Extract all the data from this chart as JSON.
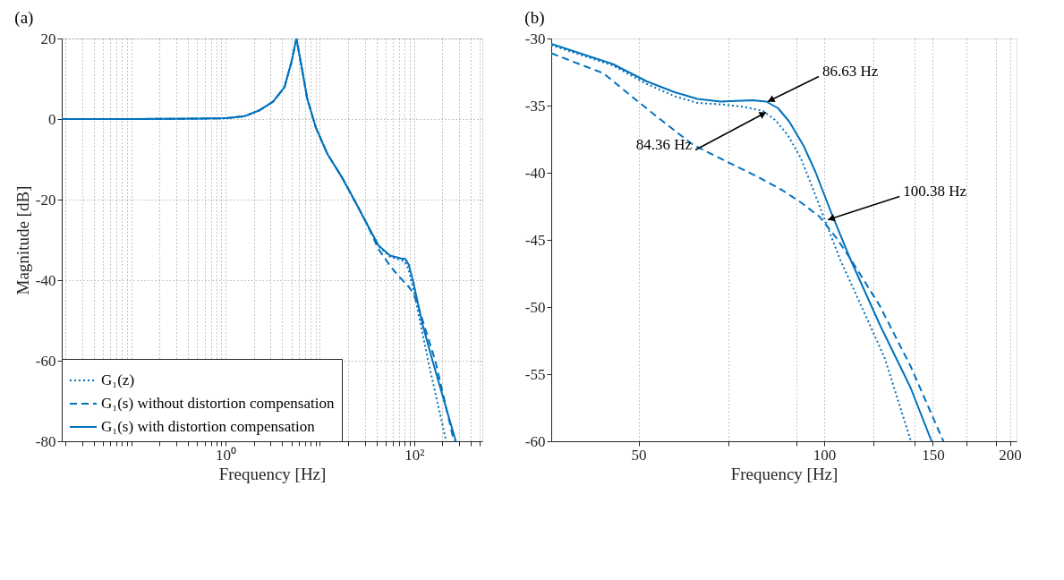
{
  "chart_data": [
    {
      "type": "line",
      "title": "(a)",
      "xlabel": "Frequency [Hz]",
      "ylabel": "Magnitude [dB]",
      "log": "x",
      "xlim": [
        0.0183,
        530
      ],
      "ylim": [
        -80,
        20
      ],
      "xticks": [
        {
          "value": 0.02,
          "label": null
        },
        {
          "value": 0.03,
          "label": null
        },
        {
          "value": 0.04,
          "label": null
        },
        {
          "value": 0.05,
          "label": null
        },
        {
          "value": 0.06,
          "label": null
        },
        {
          "value": 0.07,
          "label": null
        },
        {
          "value": 0.08,
          "label": null
        },
        {
          "value": 0.09,
          "label": null
        },
        {
          "value": 0.1,
          "label": null
        },
        {
          "value": 0.2,
          "label": null
        },
        {
          "value": 0.3,
          "label": null
        },
        {
          "value": 0.4,
          "label": null
        },
        {
          "value": 0.5,
          "label": null
        },
        {
          "value": 0.6,
          "label": null
        },
        {
          "value": 0.7,
          "label": null
        },
        {
          "value": 0.8,
          "label": null
        },
        {
          "value": 0.9,
          "label": null
        },
        {
          "value": 1,
          "label": "10⁰"
        },
        {
          "value": 2,
          "label": null
        },
        {
          "value": 3,
          "label": null
        },
        {
          "value": 4,
          "label": null
        },
        {
          "value": 5,
          "label": null
        },
        {
          "value": 6,
          "label": null
        },
        {
          "value": 7,
          "label": null
        },
        {
          "value": 8,
          "label": null
        },
        {
          "value": 9,
          "label": null
        },
        {
          "value": 10,
          "label": null
        },
        {
          "value": 20,
          "label": null
        },
        {
          "value": 30,
          "label": null
        },
        {
          "value": 40,
          "label": null
        },
        {
          "value": 50,
          "label": null
        },
        {
          "value": 60,
          "label": null
        },
        {
          "value": 70,
          "label": null
        },
        {
          "value": 80,
          "label": null
        },
        {
          "value": 90,
          "label": null
        },
        {
          "value": 100,
          "label": "10²"
        },
        {
          "value": 200,
          "label": null
        },
        {
          "value": 300,
          "label": null
        },
        {
          "value": 400,
          "label": null
        },
        {
          "value": 500,
          "label": null
        }
      ],
      "yticks": [
        -80,
        -60,
        -40,
        -20,
        0,
        20
      ],
      "grid": true,
      "legend": "bottom left",
      "series": [
        {
          "name": "G₁(z)",
          "color": "#0072bd",
          "line_style": "dotted",
          "x": [
            0.0183,
            0.1,
            0.5,
            1,
            1.59,
            2.26,
            3.19,
            4.22,
            5.02,
            5.65,
            6.42,
            7.37,
            9.08,
            12.0,
            17.0,
            24.0,
            31.7,
            42,
            55.5,
            73,
            80,
            87,
            96,
            116,
            141,
            219
          ],
          "values": [
            0,
            0,
            0.1,
            0.2,
            0.7,
            2.1,
            4.3,
            7.9,
            14.3,
            20,
            12.9,
            5,
            -2.1,
            -8.6,
            -14.3,
            -20.7,
            -26.1,
            -31.5,
            -34.2,
            -35,
            -35.4,
            -37.2,
            -41.1,
            -50.4,
            -60,
            -80
          ]
        },
        {
          "name": "G₁(s) without distortion compensation",
          "color": "#0072bd",
          "line_style": "dashed",
          "x": [
            0.0183,
            0.1,
            0.5,
            1,
            1.59,
            2.26,
            3.19,
            4.22,
            5.02,
            5.65,
            6.42,
            7.37,
            9.08,
            12.0,
            17.0,
            24.0,
            31.7,
            42,
            55,
            69,
            85.5,
            98.4,
            110,
            168,
            265
          ],
          "values": [
            0,
            0,
            0.1,
            0.2,
            0.7,
            2.1,
            4.3,
            7.9,
            14.3,
            20,
            12.9,
            5,
            -2.1,
            -8.6,
            -14.3,
            -20.7,
            -26.1,
            -32.3,
            -36.3,
            -39.1,
            -41.3,
            -43.3,
            -46.3,
            -60,
            -80
          ]
        },
        {
          "name": "G₁(s) with distortion compensation",
          "color": "#0072bd",
          "line_style": "solid",
          "x": [
            0.0183,
            0.1,
            0.5,
            1,
            1.59,
            2.26,
            3.19,
            4.22,
            5.02,
            5.65,
            6.42,
            7.37,
            9.08,
            12.0,
            17.0,
            24.0,
            31.7,
            42,
            55.5,
            73,
            81,
            88,
            97,
            123,
            157,
            277
          ],
          "values": [
            0,
            0,
            0.1,
            0.2,
            0.7,
            2.1,
            4.3,
            7.9,
            14.3,
            20,
            12.9,
            5,
            -2.1,
            -8.6,
            -14.3,
            -20.7,
            -26.1,
            -31.4,
            -33.9,
            -34.6,
            -34.7,
            -36.2,
            -40,
            -51,
            -60,
            -80
          ]
        }
      ]
    },
    {
      "type": "line",
      "title": "(b)",
      "xlabel": "Frequency [Hz]",
      "log": "x",
      "xlim": [
        36.1,
        205
      ],
      "ylim": [
        -60,
        -30
      ],
      "xticks": [
        50,
        {
          "value": 70,
          "label": null
        },
        {
          "value": 90,
          "label": null
        },
        100,
        {
          "value": 120,
          "label": null
        },
        {
          "value": 140,
          "label": null
        },
        150,
        {
          "value": 170,
          "label": null
        },
        {
          "value": 190,
          "label": null
        },
        200
      ],
      "yticks": [
        -60,
        -55,
        -50,
        -45,
        -40,
        -35,
        -30
      ],
      "grid": "x",
      "annotations": [
        {
          "text": "86.63 Hz",
          "x": 81,
          "y": -34.7
        },
        {
          "text": "84.36 Hz",
          "x": 80.5,
          "y": -35.5
        },
        {
          "text": "100.38 Hz",
          "x": 101.4,
          "y": -43.5
        }
      ],
      "series": [
        {
          "color": "#0072bd",
          "line_style": "dotted",
          "x": [
            36.1,
            45.4,
            51.6,
            57.2,
            62.3,
            67.9,
            74.2,
            79.6,
            83.4,
            87.3,
            91.6,
            95.7,
            100.4,
            106.2,
            116.1,
            125.3,
            138
          ],
          "values": [
            -30.5,
            -32.0,
            -33.4,
            -34.3,
            -34.8,
            -34.9,
            -35.1,
            -35.4,
            -36.1,
            -37.2,
            -38.9,
            -41.1,
            -43.6,
            -46.5,
            -50.4,
            -53.8,
            -59.9
          ]
        },
        {
          "color": "#0072bd",
          "line_style": "dashed",
          "x": [
            36.1,
            43.9,
            49.3,
            55.2,
            61.2,
            69.0,
            78.0,
            85.5,
            91.6,
            98.4,
            104.8,
            109.9,
            123,
            138,
            156
          ],
          "values": [
            -31.1,
            -32.6,
            -34.5,
            -36.3,
            -37.9,
            -39.1,
            -40.3,
            -41.3,
            -42.2,
            -43.3,
            -44.9,
            -46.3,
            -49.9,
            -54.4,
            -60
          ]
        },
        {
          "color": "#0072bd",
          "line_style": "solid",
          "x": [
            36.1,
            45.4,
            51.6,
            57.2,
            62.3,
            67.9,
            76.5,
            80.6,
            84.2,
            87.8,
            92.6,
            96.7,
            102.5,
            109.9,
            123,
            138,
            149.3
          ],
          "values": [
            -30.4,
            -31.9,
            -33.2,
            -34.0,
            -34.5,
            -34.7,
            -34.6,
            -34.7,
            -35.2,
            -36.2,
            -38.0,
            -39.9,
            -42.9,
            -46.3,
            -51.3,
            -56.0,
            -60
          ]
        }
      ]
    }
  ]
}
